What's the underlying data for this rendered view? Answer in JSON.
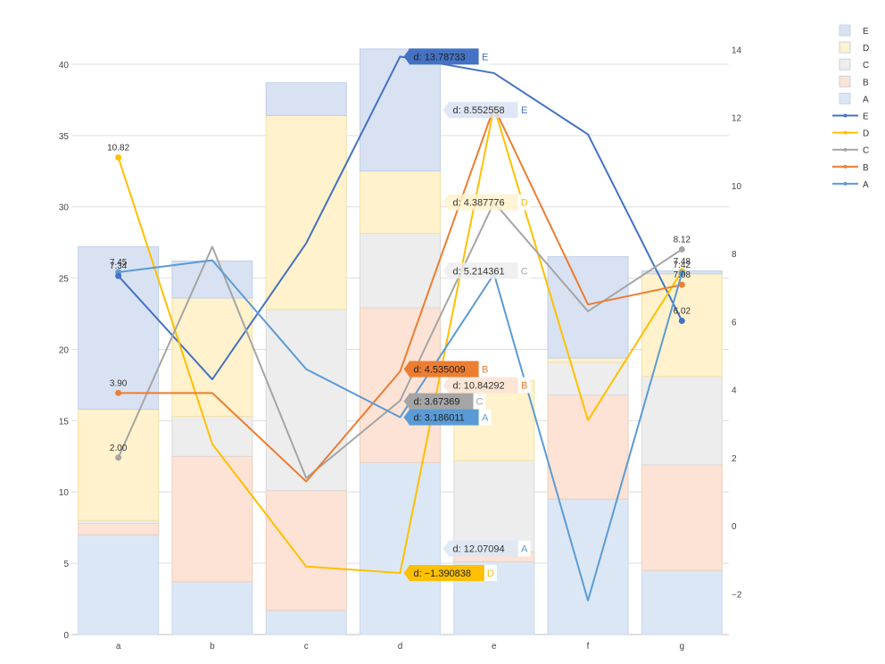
{
  "chart_data": {
    "type": "bar",
    "categories": [
      "a",
      "b",
      "c",
      "d",
      "e",
      "f",
      "g"
    ],
    "left_axis": {
      "ylim": [
        0,
        42
      ],
      "ticks": [
        0,
        5,
        10,
        15,
        20,
        25,
        30,
        35,
        40
      ]
    },
    "right_axis": {
      "ylim": [
        -3.2,
        14.4
      ],
      "ticks": [
        -2,
        0,
        2,
        4,
        6,
        8,
        10,
        12,
        14
      ],
      "tick_labels": [
        "−2",
        "0",
        "2",
        "4",
        "6",
        "8",
        "10",
        "12",
        "14"
      ]
    },
    "grid": true,
    "legend_position": "right",
    "bar_series": [
      {
        "name": "A",
        "color": "#dce7f5",
        "edge": "#c8d8ee",
        "values": [
          7.0,
          3.7,
          1.7,
          12.07094,
          5.1,
          9.5,
          4.5
        ]
      },
      {
        "name": "B",
        "color": "#fce3d6",
        "edge": "#f0cdb8",
        "values": [
          0.8,
          8.8,
          8.4,
          10.84292,
          0.7,
          7.3,
          7.4
        ]
      },
      {
        "name": "C",
        "color": "#ededed",
        "edge": "#d9d9d9",
        "values": [
          0.2,
          2.8,
          12.7,
          5.214361,
          6.4,
          2.3,
          6.2
        ]
      },
      {
        "name": "D",
        "color": "#fff2cc",
        "edge": "#f2e1a6",
        "values": [
          7.8,
          8.3,
          13.6,
          4.387776,
          5.6,
          0.3,
          7.2
        ]
      },
      {
        "name": "E",
        "color": "#d9e2f3",
        "edge": "#bfcfe9",
        "values": [
          11.4,
          2.6,
          2.3,
          8.552558,
          0,
          7.1,
          0.2
        ]
      }
    ],
    "line_series": [
      {
        "name": "E",
        "color": "#4472c4",
        "values": [
          7.34,
          4.3,
          8.3,
          13.78733,
          13.3,
          11.5,
          6.02
        ]
      },
      {
        "name": "D",
        "color": "#ffc000",
        "values": [
          10.82,
          2.4,
          -1.2,
          -1.390838,
          12.3,
          3.1,
          7.48
        ]
      },
      {
        "name": "C",
        "color": "#a5a5a5",
        "values": [
          2.0,
          8.2,
          1.4,
          3.67369,
          9.5,
          6.3,
          8.12
        ]
      },
      {
        "name": "B",
        "color": "#ed7d31",
        "values": [
          3.9,
          3.9,
          1.3,
          4.535009,
          12.3,
          6.5,
          7.08
        ]
      },
      {
        "name": "A",
        "color": "#5b9bd5",
        "values": [
          7.45,
          7.8,
          4.6,
          3.186011,
          7.4,
          -2.2,
          7.42
        ]
      }
    ],
    "point_labels": [
      {
        "series": "D",
        "index": 0,
        "text": "10.82"
      },
      {
        "series": "A",
        "index": 0,
        "text": "7.45"
      },
      {
        "series": "E",
        "index": 0,
        "text": "7.34"
      },
      {
        "series": "B",
        "index": 0,
        "text": "3.90"
      },
      {
        "series": "C",
        "index": 0,
        "text": "2.00"
      },
      {
        "series": "C",
        "index": 6,
        "text": "8.12"
      },
      {
        "series": "D",
        "index": 6,
        "text": "7.48"
      },
      {
        "series": "A",
        "index": 6,
        "text": "7.42"
      },
      {
        "series": "B",
        "index": 6,
        "text": "7.08"
      },
      {
        "series": "E",
        "index": 6,
        "text": "6.02"
      }
    ],
    "tooltips": [
      {
        "text": "d: 8.552558",
        "series": "E",
        "kind": "bar",
        "faded": true
      },
      {
        "text": "d: 13.78733",
        "series": "E",
        "kind": "line",
        "faded": false
      },
      {
        "text": "d: 4.387776",
        "series": "D",
        "kind": "bar",
        "faded": true
      },
      {
        "text": "d: 5.214361",
        "series": "C",
        "kind": "bar",
        "faded": true
      },
      {
        "text": "d: 10.84292",
        "series": "B",
        "kind": "bar",
        "faded": true
      },
      {
        "text": "d: 4.535009",
        "series": "B",
        "kind": "line",
        "faded": false
      },
      {
        "text": "d: 3.67369",
        "series": "C",
        "kind": "line",
        "faded": false
      },
      {
        "text": "d: 3.186011",
        "series": "A",
        "kind": "line",
        "faded": false
      },
      {
        "text": "d: 12.07094",
        "series": "A",
        "kind": "bar",
        "faded": true
      },
      {
        "text": "d: −1.390838",
        "series": "D",
        "kind": "line",
        "faded": false
      }
    ],
    "legend": [
      {
        "name": "E",
        "kind": "bar",
        "color": "#d9e2f3"
      },
      {
        "name": "D",
        "kind": "bar",
        "color": "#fff2cc"
      },
      {
        "name": "C",
        "kind": "bar",
        "color": "#ededed"
      },
      {
        "name": "B",
        "kind": "bar",
        "color": "#fce3d6"
      },
      {
        "name": "A",
        "kind": "bar",
        "color": "#dce7f5"
      },
      {
        "name": "E",
        "kind": "line",
        "color": "#4472c4"
      },
      {
        "name": "D",
        "kind": "line",
        "color": "#ffc000"
      },
      {
        "name": "C",
        "kind": "line",
        "color": "#a5a5a5"
      },
      {
        "name": "B",
        "kind": "line",
        "color": "#ed7d31"
      },
      {
        "name": "A",
        "kind": "line",
        "color": "#5b9bd5"
      }
    ]
  }
}
